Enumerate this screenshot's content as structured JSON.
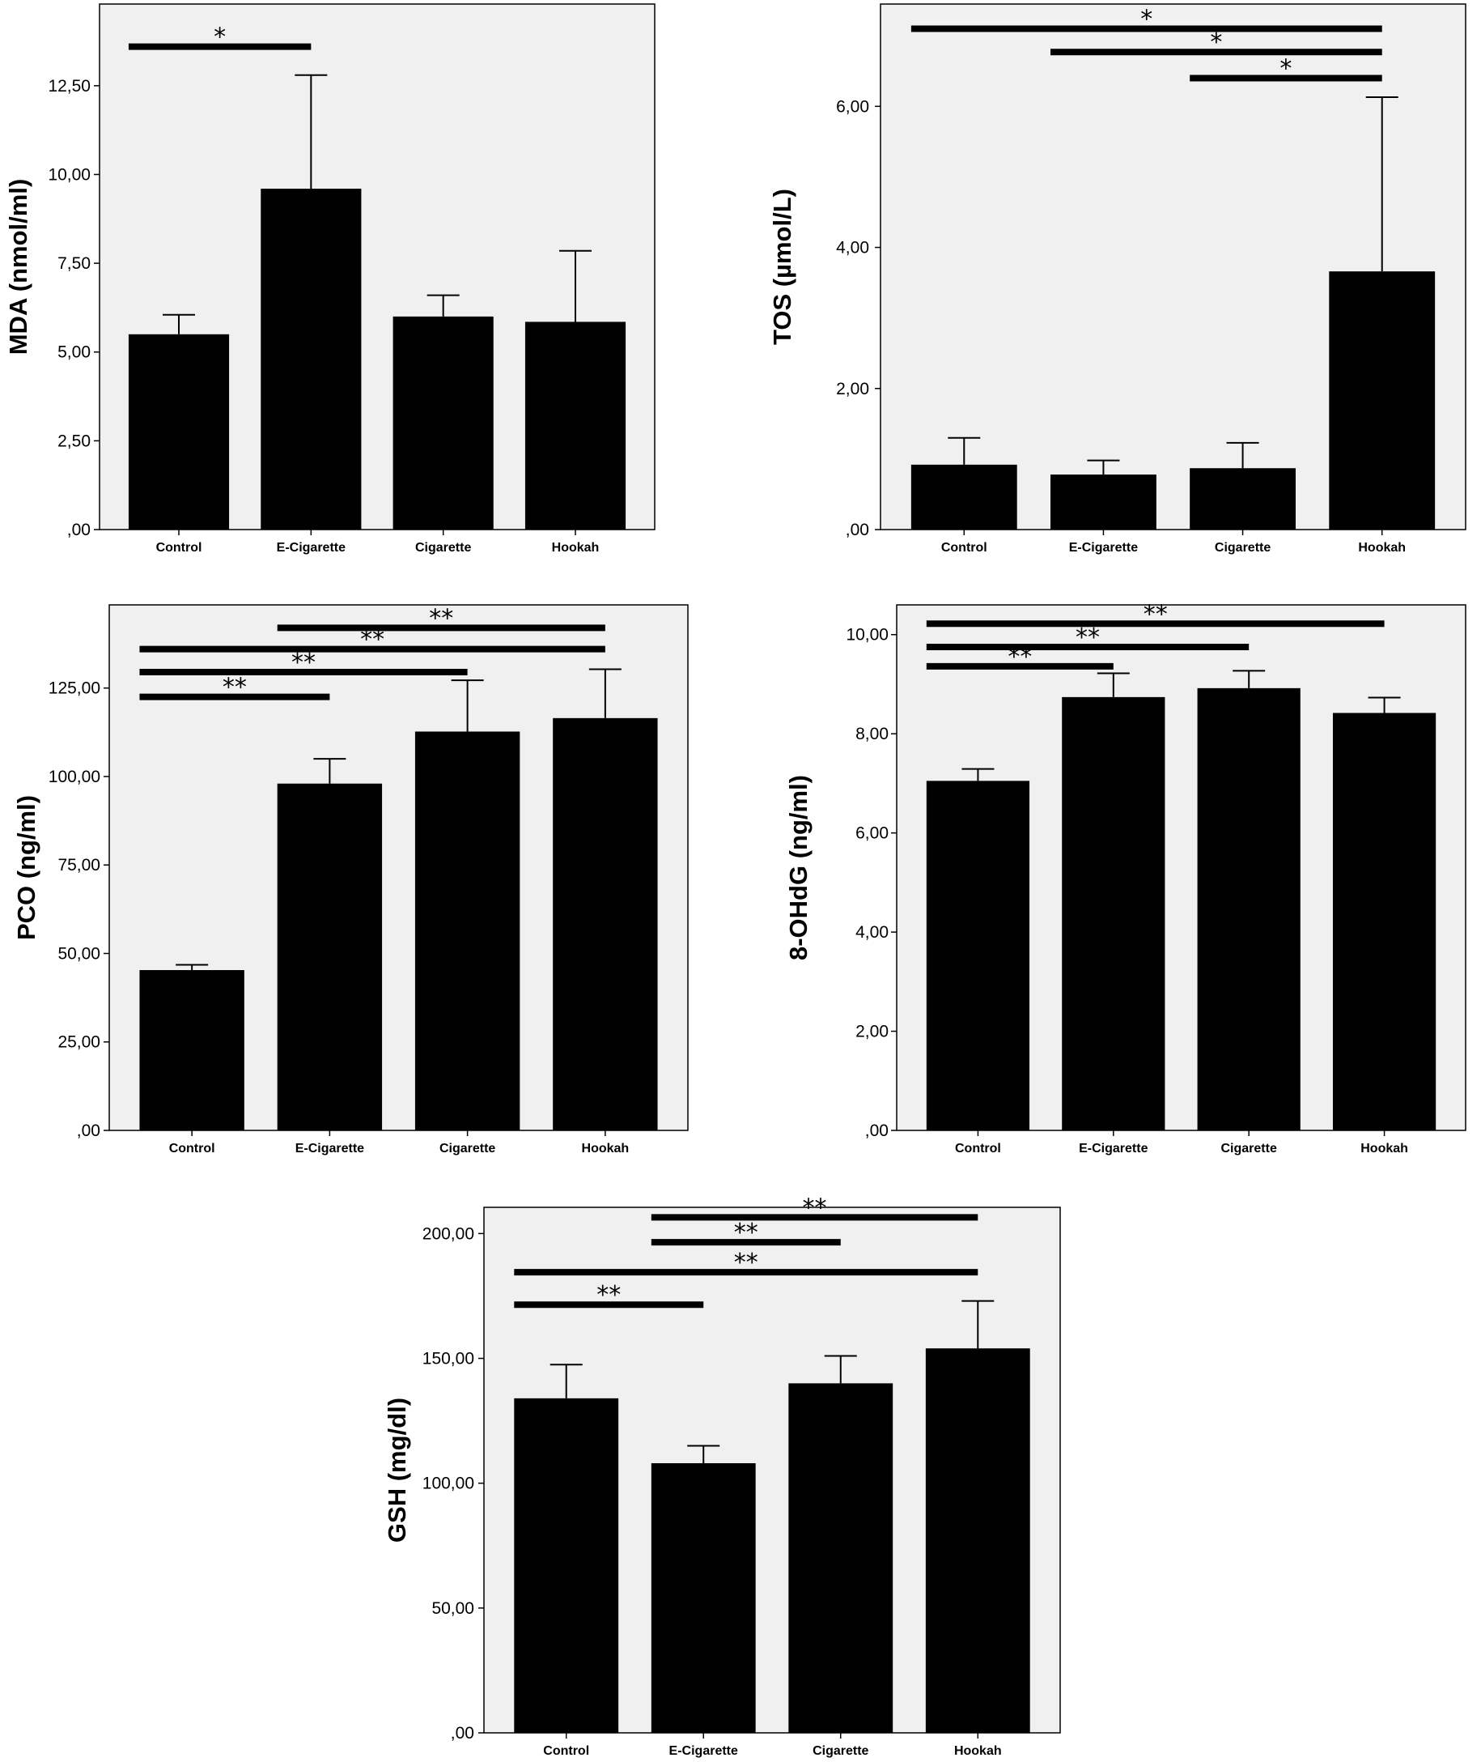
{
  "colors": {
    "plot_background": "#f0f0f0",
    "bar": "#000000",
    "frame": "#000000",
    "page": "#ffffff"
  },
  "chart_data": [
    {
      "type": "bar",
      "ylabel": "MDA (nmol/ml)",
      "categories": [
        "Control",
        "E-Cigarette",
        "Cigarette",
        "Hookah"
      ],
      "values": [
        5.5,
        9.6,
        6.0,
        5.85
      ],
      "error_upper": [
        6.05,
        12.8,
        6.6,
        7.85
      ],
      "ylim": [
        0,
        14.8
      ],
      "yticks": [
        0,
        2.5,
        5,
        7.5,
        10,
        12.5
      ],
      "ytick_labels": [
        ",00",
        "2,50",
        "5,00",
        "7,50",
        "10,00",
        "12,50"
      ],
      "significance": [
        {
          "from": 0,
          "to": 1,
          "y": 13.6,
          "label": "*"
        }
      ]
    },
    {
      "type": "bar",
      "ylabel": "TOS (µmol/L)",
      "categories": [
        "Control",
        "E-Cigarette",
        "Cigarette",
        "Hookah"
      ],
      "values": [
        0.92,
        0.78,
        0.87,
        3.66
      ],
      "error_upper": [
        1.3,
        0.98,
        1.23,
        6.13
      ],
      "ylim": [
        0,
        7.45
      ],
      "yticks": [
        0,
        2,
        4,
        6
      ],
      "ytick_labels": [
        ",00",
        "2,00",
        "4,00",
        "6,00"
      ],
      "significance": [
        {
          "from": 0,
          "to": 3,
          "y": 7.1,
          "label": "*"
        },
        {
          "from": 1,
          "to": 3,
          "y": 6.77,
          "label": "*"
        },
        {
          "from": 2,
          "to": 3,
          "y": 6.4,
          "label": "*"
        }
      ]
    },
    {
      "type": "bar",
      "ylabel": "PCO (ng/ml)",
      "categories": [
        "Control",
        "E-Cigarette",
        "Cigarette",
        "Hookah"
      ],
      "values": [
        45.3,
        98.0,
        112.7,
        116.5
      ],
      "error_upper": [
        46.8,
        105.0,
        127.2,
        130.3
      ],
      "ylim": [
        0,
        148.5
      ],
      "yticks": [
        0,
        25,
        50,
        75,
        100,
        125
      ],
      "ytick_labels": [
        ",00",
        "25,00",
        "50,00",
        "75,00",
        "100,00",
        "125,00"
      ],
      "significance": [
        {
          "from": 1,
          "to": 3,
          "y": 142.0,
          "label": "**"
        },
        {
          "from": 0,
          "to": 3,
          "y": 136.0,
          "label": "**"
        },
        {
          "from": 0,
          "to": 2,
          "y": 129.5,
          "label": "**"
        },
        {
          "from": 0,
          "to": 1,
          "y": 122.5,
          "label": "**"
        }
      ]
    },
    {
      "type": "bar",
      "ylabel": "8-OHdG (ng/ml)",
      "categories": [
        "Control",
        "E-Cigarette",
        "Cigarette",
        "Hookah"
      ],
      "values": [
        7.05,
        8.74,
        8.92,
        8.42
      ],
      "error_upper": [
        7.29,
        9.22,
        9.27,
        8.73
      ],
      "ylim": [
        0,
        10.6
      ],
      "yticks": [
        0,
        2,
        4,
        6,
        8,
        10
      ],
      "ytick_labels": [
        ",00",
        "2,00",
        "4,00",
        "6,00",
        "8,00",
        "10,00"
      ],
      "significance": [
        {
          "from": 0,
          "to": 3,
          "y": 10.22,
          "label": "**"
        },
        {
          "from": 0,
          "to": 2,
          "y": 9.75,
          "label": "**"
        },
        {
          "from": 0,
          "to": 1,
          "y": 9.36,
          "label": "**"
        }
      ]
    },
    {
      "type": "bar",
      "ylabel": "GSH (mg/dl)",
      "categories": [
        "Control",
        "E-Cigarette",
        "Cigarette",
        "Hookah"
      ],
      "values": [
        134,
        108,
        140,
        154
      ],
      "error_upper": [
        147.5,
        115,
        151,
        173
      ],
      "ylim": [
        0,
        210.5
      ],
      "yticks": [
        0,
        50,
        100,
        150,
        200
      ],
      "ytick_labels": [
        ",00",
        "50,00",
        "100,00",
        "150,00",
        "200,00"
      ],
      "significance": [
        {
          "from": 1,
          "to": 3,
          "y": 206.5,
          "label": "**"
        },
        {
          "from": 1,
          "to": 2,
          "y": 196.5,
          "label": "**"
        },
        {
          "from": 0,
          "to": 3,
          "y": 184.5,
          "label": "**"
        },
        {
          "from": 0,
          "to": 1,
          "y": 171.5,
          "label": "**"
        }
      ]
    }
  ]
}
